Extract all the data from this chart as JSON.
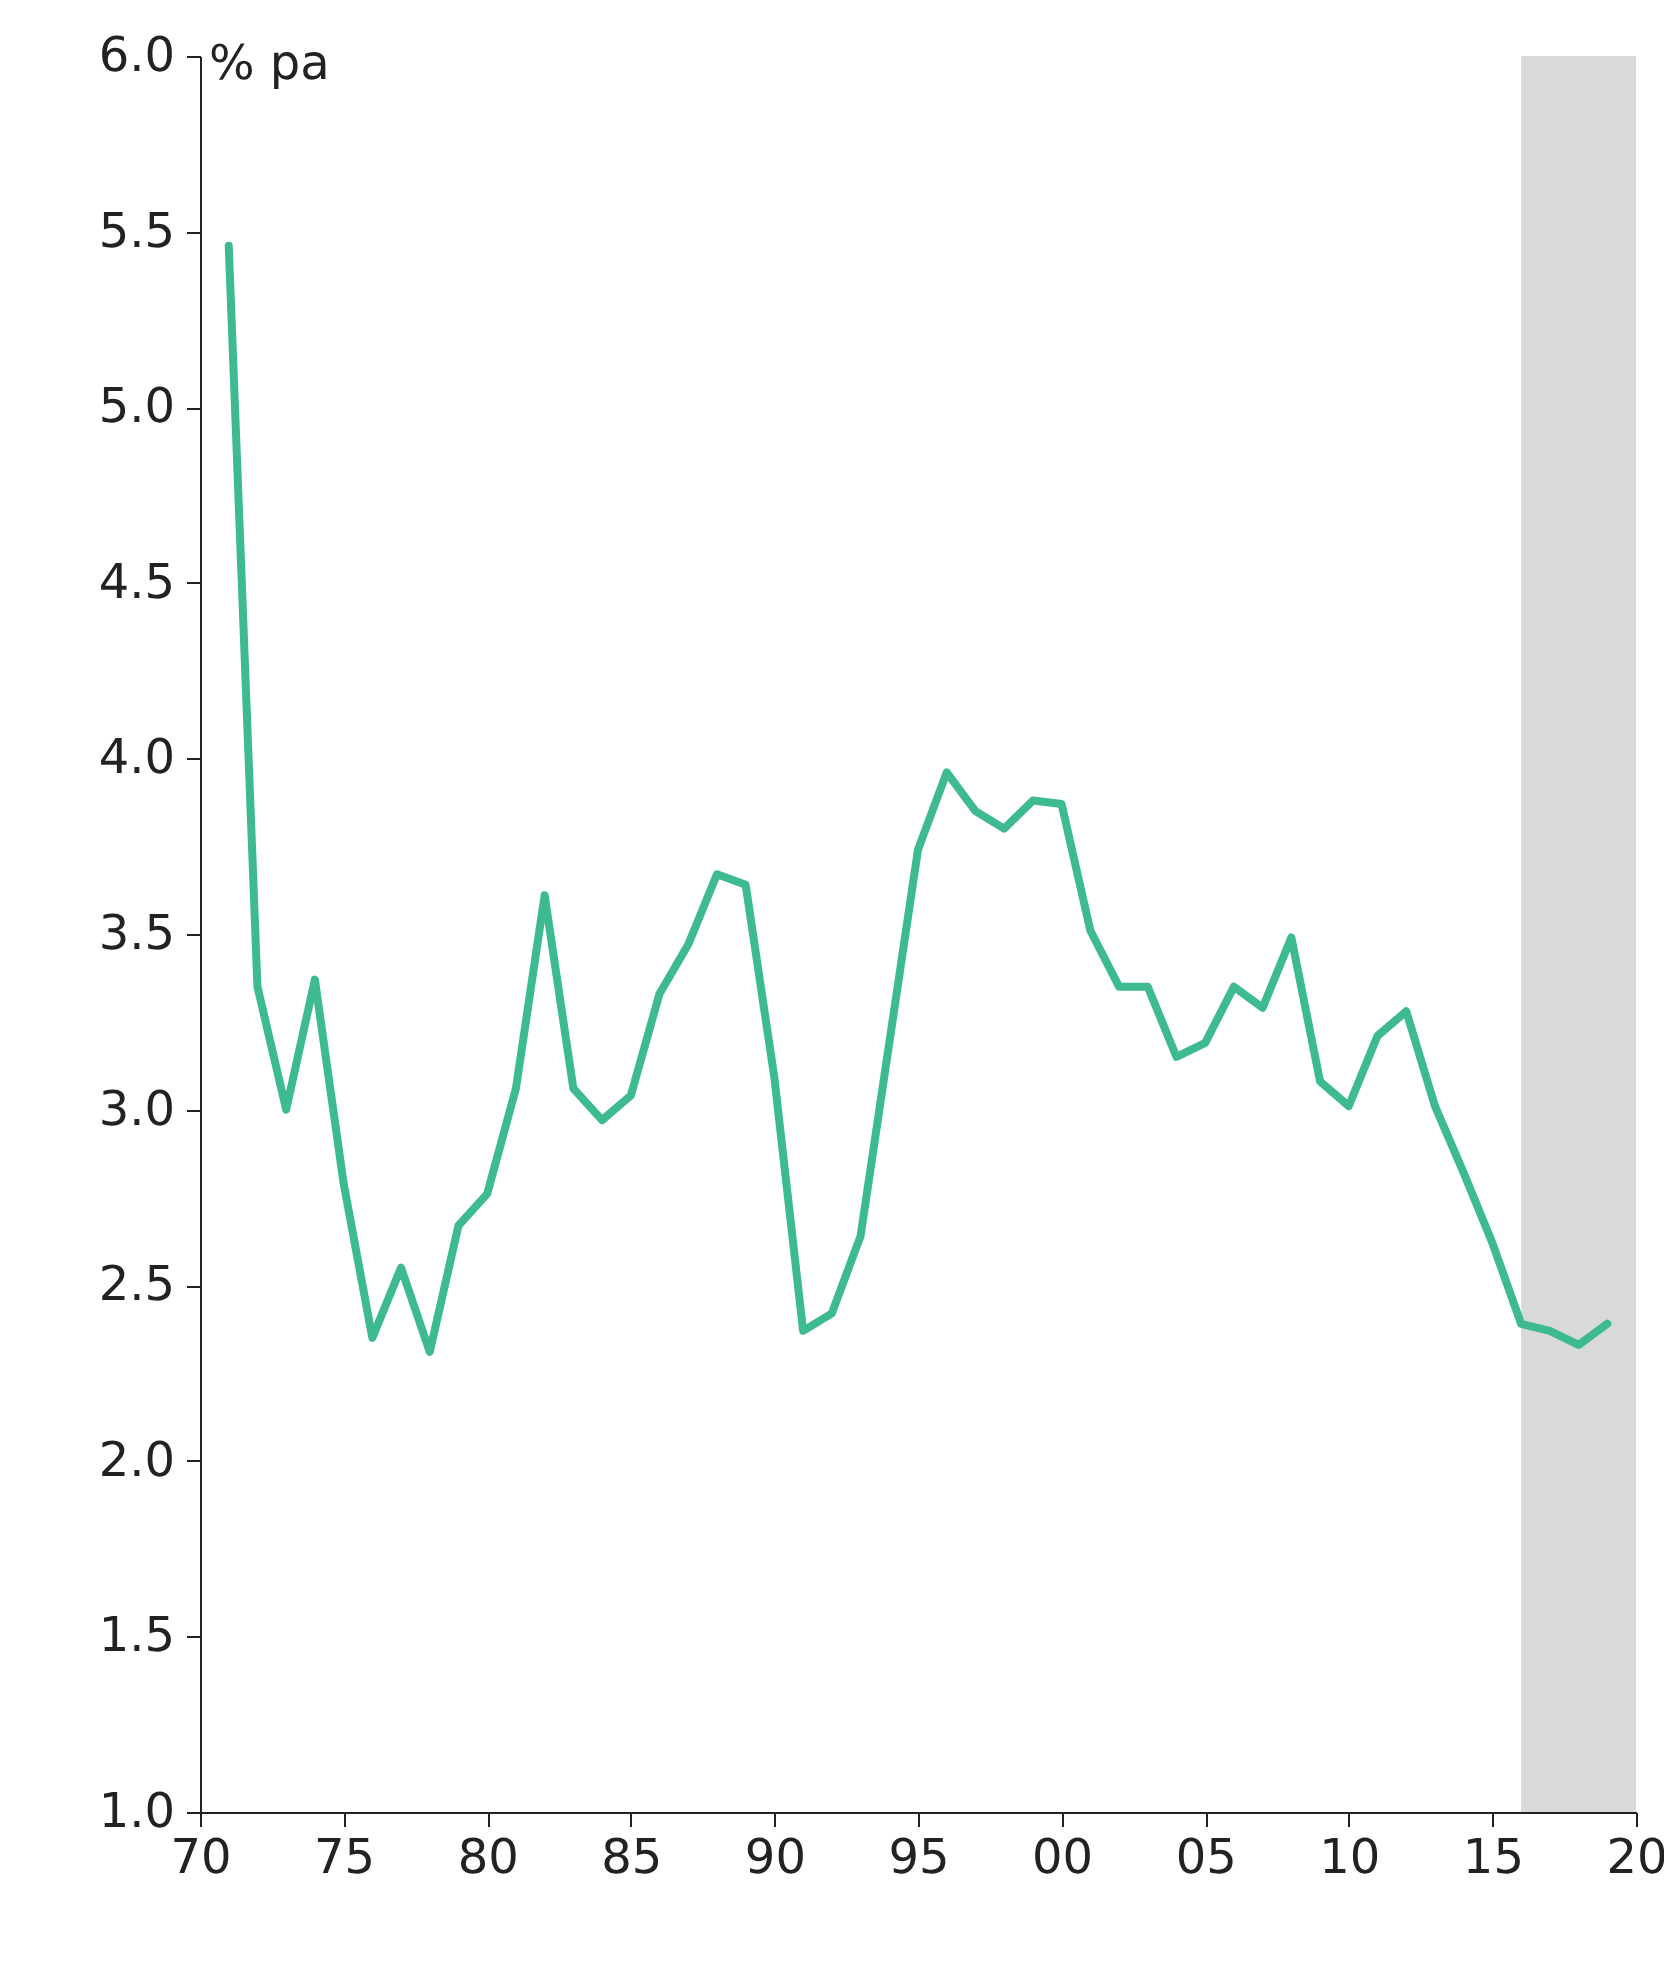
{
  "chart_data": {
    "type": "line",
    "ylabel": "% pa",
    "x": [
      1971,
      1972,
      1973,
      1974,
      1975,
      1976,
      1977,
      1978,
      1979,
      1980,
      1981,
      1982,
      1983,
      1984,
      1985,
      1986,
      1987,
      1988,
      1989,
      1990,
      1991,
      1992,
      1993,
      1994,
      1995,
      1996,
      1997,
      1998,
      1999,
      2000,
      2001,
      2002,
      2003,
      2004,
      2005,
      2006,
      2007,
      2008,
      2009,
      2010,
      2011,
      2012,
      2013,
      2014,
      2015,
      2016,
      2017,
      2018,
      2019
    ],
    "series": [
      {
        "color": "#3dbb8e",
        "values": [
          5.46,
          3.35,
          3.0,
          3.37,
          2.79,
          2.35,
          2.55,
          2.31,
          2.67,
          2.76,
          3.06,
          3.61,
          3.06,
          2.97,
          3.04,
          3.33,
          3.47,
          3.67,
          3.64,
          3.09,
          2.37,
          2.42,
          2.64,
          3.19,
          3.74,
          3.96,
          3.85,
          3.8,
          3.88,
          3.87,
          3.51,
          3.35,
          3.35,
          3.15,
          3.19,
          3.35,
          3.29,
          3.49,
          3.08,
          3.01,
          3.21,
          3.28,
          3.01,
          2.82,
          2.62,
          2.39,
          2.37,
          2.33,
          2.39
        ]
      }
    ],
    "xlim": [
      1970,
      2020
    ],
    "xticks": [
      {
        "value": 1970,
        "label": "70"
      },
      {
        "value": 1975,
        "label": "75"
      },
      {
        "value": 1980,
        "label": "80"
      },
      {
        "value": 1985,
        "label": "85"
      },
      {
        "value": 1990,
        "label": "90"
      },
      {
        "value": 1995,
        "label": "95"
      },
      {
        "value": 2000,
        "label": "00"
      },
      {
        "value": 2005,
        "label": "05"
      },
      {
        "value": 2010,
        "label": "10"
      },
      {
        "value": 2015,
        "label": "15"
      },
      {
        "value": 2020,
        "label": "20"
      }
    ],
    "ylim": [
      1,
      6
    ],
    "yticks": [
      {
        "value": 1,
        "label": "1.0"
      },
      {
        "value": 1.5,
        "label": "1.5"
      },
      {
        "value": 2,
        "label": "2.0"
      },
      {
        "value": 2.5,
        "label": "2.5"
      },
      {
        "value": 3,
        "label": "3.0"
      },
      {
        "value": 3.5,
        "label": "3.5"
      },
      {
        "value": 4,
        "label": "4.0"
      },
      {
        "value": 4.5,
        "label": "4.5"
      },
      {
        "value": 5,
        "label": "5.0"
      },
      {
        "value": 5.5,
        "label": "5.5"
      },
      {
        "value": 6,
        "label": "6.0"
      }
    ],
    "bands": [
      {
        "axis": "x",
        "from": 2016,
        "to": 2020,
        "color": "#d9d9d9"
      }
    ],
    "grid": false,
    "line_style": "solid",
    "marker": "none"
  }
}
